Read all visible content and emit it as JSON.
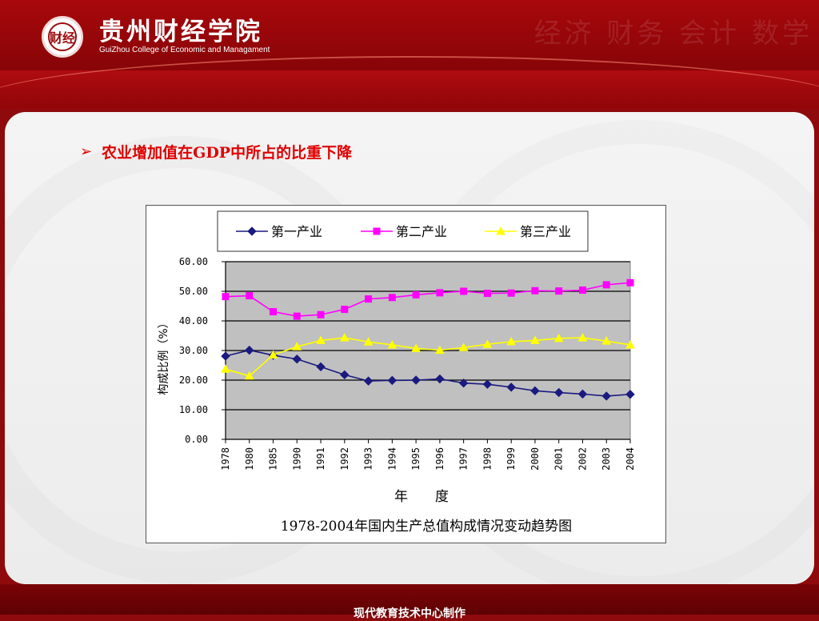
{
  "header": {
    "college_cn": "贵州财经学院",
    "college_en": "GuiZhou College of Economic and Managament",
    "logo_text": "财经",
    "ghost_text": "经济 财务 会计 数学"
  },
  "slide": {
    "bullet_symbol": "➢",
    "bullet_text": "农业增加值在GDP中所占的比重下降"
  },
  "footer": {
    "text": "现代教育技术中心制作"
  },
  "chart_data": {
    "type": "line",
    "title": "1978-2004年国内生产总值构成情况变动趋势图",
    "xlabel": "年　　度",
    "ylabel": "构成比例（%）",
    "ylim": [
      0,
      60
    ],
    "yticks": [
      "0.00",
      "10.00",
      "20.00",
      "30.00",
      "40.00",
      "50.00",
      "60.00"
    ],
    "grid": true,
    "legend_position": "top",
    "categories": [
      "1978",
      "1980",
      "1985",
      "1990",
      "1991",
      "1992",
      "1993",
      "1994",
      "1995",
      "1996",
      "1997",
      "1998",
      "1999",
      "2000",
      "2001",
      "2002",
      "2003",
      "2004"
    ],
    "series": [
      {
        "name": "第一产业",
        "color": "#1a1a80",
        "marker": "diamond",
        "values": [
          28.1,
          30.1,
          28.4,
          27.1,
          24.5,
          21.8,
          19.7,
          19.9,
          20.0,
          20.4,
          19.0,
          18.6,
          17.6,
          16.4,
          15.8,
          15.3,
          14.6,
          15.2
        ]
      },
      {
        "name": "第二产业",
        "color": "#ff00ff",
        "marker": "square",
        "values": [
          48.2,
          48.5,
          43.1,
          41.6,
          42.1,
          43.9,
          47.4,
          47.9,
          48.8,
          49.5,
          50.0,
          49.3,
          49.4,
          50.2,
          50.1,
          50.4,
          52.2,
          52.9
        ]
      },
      {
        "name": "第三产业",
        "color": "#ffff00",
        "marker": "triangle",
        "values": [
          23.7,
          21.4,
          28.5,
          31.3,
          33.4,
          34.3,
          32.9,
          31.9,
          30.7,
          30.1,
          31.0,
          32.1,
          33.0,
          33.4,
          34.1,
          34.3,
          33.2,
          31.9
        ]
      }
    ]
  }
}
